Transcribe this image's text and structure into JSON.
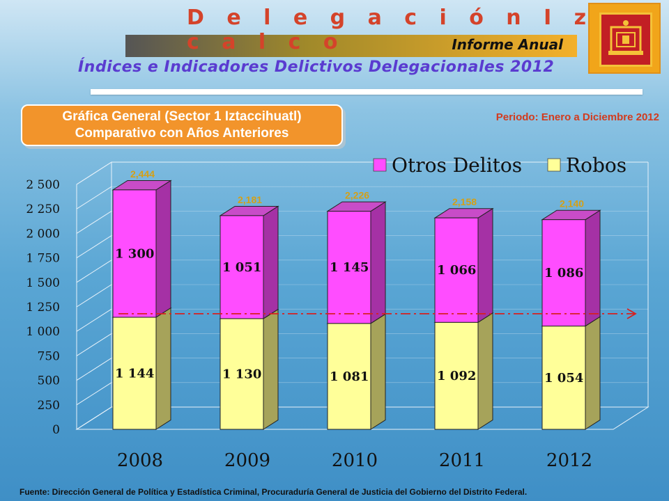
{
  "header": {
    "title": "D e l e g a c i ó n   I z t a c a l c o",
    "report": "Informe Anual",
    "subtitle": "Índices e Indicadores Delictivos Delegacionales 2012"
  },
  "chart_heading": {
    "line1": "Gráfica General (Sector 1 Iztaccihuatl)",
    "line2": "Comparativo con Años Anteriores"
  },
  "period": "Periodo: Enero a Diciembre 2012",
  "source": "Fuente: Dirección General de Política y Estadística Criminal, Procuraduría General de Justicia del Gobierno del Distrito Federal.",
  "colors": {
    "otros": "#ff4dff",
    "robos": "#ffff99",
    "accent": "#d4432a",
    "reference_line": "#d62020"
  },
  "chart_data": {
    "type": "bar",
    "stacked": true,
    "three_d": true,
    "categories": [
      "2008",
      "2009",
      "2010",
      "2011",
      "2012"
    ],
    "series": [
      {
        "name": "Robos",
        "values": [
          1144,
          1130,
          1081,
          1092,
          1054
        ]
      },
      {
        "name": "Otros Delitos",
        "values": [
          1300,
          1051,
          1145,
          1066,
          1086
        ]
      }
    ],
    "segment_labels": {
      "Robos": [
        "1 144",
        "1 130",
        "1 081",
        "1 092",
        "1 054"
      ],
      "Otros Delitos": [
        "1 300",
        "1 051",
        "1 145",
        "1 066",
        "1 086"
      ]
    },
    "totals": [
      "2,444",
      "2,181",
      "2,226",
      "2,158",
      "2,140"
    ],
    "ylim": [
      0,
      2500
    ],
    "yticks": [
      0,
      250,
      500,
      750,
      1000,
      1250,
      1500,
      1750,
      2000,
      2250,
      2500
    ],
    "ytick_labels": [
      "0",
      "250",
      "500",
      "750",
      "1 000",
      "1 250",
      "1 500",
      "1 750",
      "2 000",
      "2 250",
      "2 500"
    ],
    "reference_line": 1180,
    "legend_position": "top-right",
    "title": "",
    "xlabel": "",
    "ylabel": ""
  }
}
